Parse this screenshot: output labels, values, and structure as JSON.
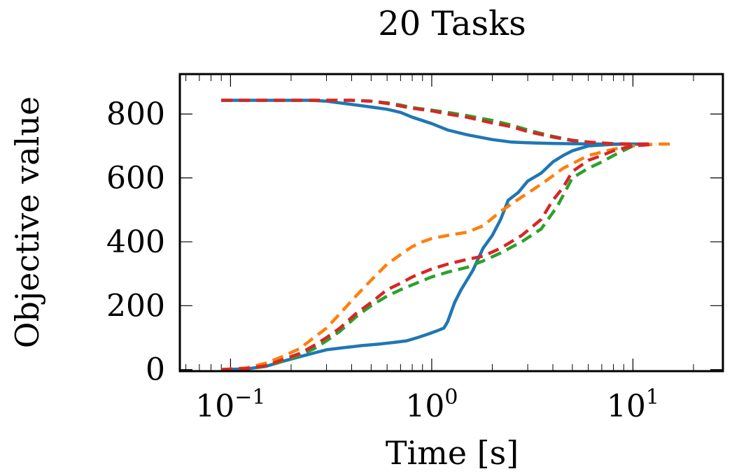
{
  "chart_data": {
    "type": "line",
    "title": "20 Tasks",
    "xlabel": "Time [s]",
    "ylabel": "Objective value",
    "xscale": "log",
    "xlim": [
      0.056,
      28
    ],
    "ylim": [
      -5,
      925
    ],
    "xticks": [
      {
        "value": 0.1,
        "base": "10",
        "exp": "−1"
      },
      {
        "value": 1,
        "base": "10",
        "exp": "0"
      },
      {
        "value": 10,
        "base": "10",
        "exp": "1"
      }
    ],
    "yticks": [
      0,
      200,
      400,
      600,
      800
    ],
    "grid": false,
    "legend": "none",
    "series": [
      {
        "color": "#1f77b4",
        "dash": "solid",
        "x": [
          0.09,
          0.12,
          0.15,
          0.18,
          0.22,
          0.26,
          0.3,
          0.36,
          0.45,
          0.55,
          0.65,
          0.75,
          0.85,
          0.95,
          1.05,
          1.15,
          1.2,
          1.3,
          1.4,
          1.6,
          1.8,
          2.0,
          2.2,
          2.4,
          2.7,
          3.0,
          3.5,
          4.0,
          4.5,
          5.0,
          6.0,
          7.0,
          8.0,
          10.0,
          12.0
        ],
        "y": [
          0,
          2,
          10,
          25,
          40,
          52,
          62,
          68,
          75,
          80,
          85,
          90,
          100,
          110,
          120,
          130,
          150,
          210,
          250,
          310,
          380,
          420,
          470,
          530,
          555,
          590,
          615,
          650,
          670,
          685,
          700,
          703,
          705,
          706,
          706
        ]
      },
      {
        "color": "#1f77b4",
        "dash": "solid",
        "x": [
          0.09,
          0.15,
          0.2,
          0.25,
          0.3,
          0.4,
          0.5,
          0.6,
          0.7,
          0.8,
          1.0,
          1.2,
          1.5,
          2.0,
          2.5,
          3.0,
          4.0,
          5.0,
          7.0,
          10.0,
          12.0
        ],
        "y": [
          843,
          843,
          843,
          843,
          840,
          830,
          822,
          815,
          805,
          790,
          770,
          750,
          735,
          720,
          712,
          710,
          708,
          707,
          706,
          706,
          706
        ]
      },
      {
        "color": "#ff7f0e",
        "dash": "dashed",
        "x": [
          0.09,
          0.12,
          0.15,
          0.18,
          0.22,
          0.26,
          0.3,
          0.35,
          0.42,
          0.5,
          0.6,
          0.7,
          0.8,
          0.9,
          1.0,
          1.2,
          1.5,
          1.8,
          2.2,
          2.8,
          3.5,
          4.5,
          6.0,
          8.0,
          10.0,
          13.0,
          16.0
        ],
        "y": [
          0,
          5,
          20,
          40,
          65,
          100,
          130,
          175,
          230,
          280,
          330,
          360,
          385,
          400,
          410,
          420,
          430,
          450,
          495,
          540,
          580,
          630,
          670,
          690,
          700,
          706,
          706
        ]
      },
      {
        "color": "#2ca02c",
        "dash": "dashed",
        "x": [
          0.09,
          0.12,
          0.15,
          0.18,
          0.22,
          0.26,
          0.3,
          0.35,
          0.42,
          0.5,
          0.6,
          0.7,
          0.8,
          1.0,
          1.2,
          1.5,
          1.8,
          2.2,
          2.8,
          3.5,
          4.2,
          5.0,
          6.0,
          7.0,
          8.0,
          10.0,
          12.0
        ],
        "y": [
          0,
          2,
          10,
          25,
          45,
          65,
          90,
          120,
          165,
          200,
          230,
          250,
          265,
          290,
          305,
          320,
          340,
          365,
          400,
          440,
          510,
          600,
          630,
          650,
          670,
          700,
          706
        ]
      },
      {
        "color": "#2ca02c",
        "dash": "dashed",
        "x": [
          0.09,
          0.2,
          0.3,
          0.4,
          0.5,
          0.6,
          0.7,
          0.8,
          1.0,
          1.2,
          1.5,
          2.0,
          2.5,
          3.0,
          4.0,
          5.0,
          6.0,
          8.0,
          10.0
        ],
        "y": [
          843,
          843,
          843,
          843,
          840,
          835,
          828,
          820,
          812,
          805,
          795,
          780,
          765,
          750,
          730,
          718,
          712,
          707,
          706
        ]
      },
      {
        "color": "#d62728",
        "dash": "dashed",
        "x": [
          0.09,
          0.12,
          0.15,
          0.18,
          0.22,
          0.26,
          0.3,
          0.35,
          0.42,
          0.5,
          0.6,
          0.7,
          0.8,
          1.0,
          1.2,
          1.5,
          1.8,
          2.2,
          2.8,
          3.5,
          4.0,
          4.5,
          5.0,
          6.0,
          7.0,
          8.0,
          10.0,
          13.0
        ],
        "y": [
          0,
          3,
          12,
          30,
          50,
          75,
          100,
          130,
          175,
          210,
          250,
          270,
          290,
          315,
          330,
          345,
          355,
          380,
          420,
          470,
          530,
          570,
          620,
          655,
          670,
          685,
          700,
          706
        ]
      },
      {
        "color": "#d62728",
        "dash": "dashed",
        "x": [
          0.09,
          0.2,
          0.3,
          0.4,
          0.5,
          0.6,
          0.7,
          0.8,
          1.0,
          1.2,
          1.5,
          2.0,
          2.5,
          3.0,
          4.0,
          5.0,
          6.0,
          8.0,
          10.0,
          12.0
        ],
        "y": [
          843,
          843,
          843,
          843,
          840,
          833,
          825,
          818,
          810,
          800,
          790,
          772,
          760,
          745,
          728,
          717,
          712,
          707,
          706,
          706
        ]
      }
    ]
  }
}
